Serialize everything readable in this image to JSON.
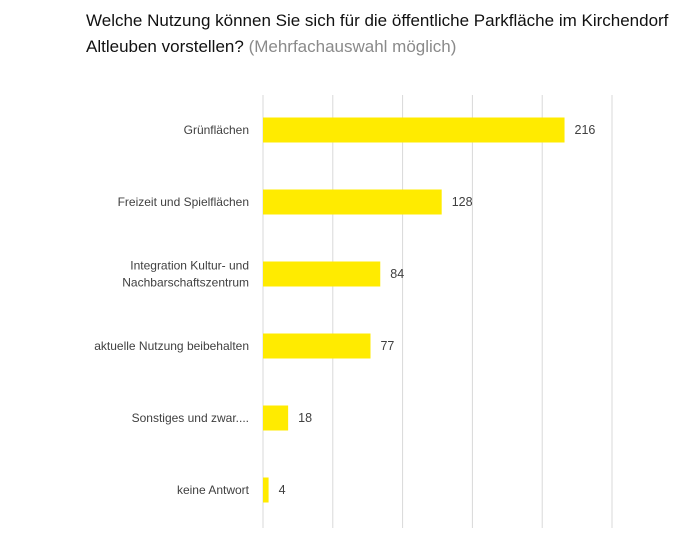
{
  "chart_data": {
    "type": "bar",
    "orientation": "horizontal",
    "title": "Welche Nutzung können Sie sich für die öffentliche Parkfläche im Kirchendorf Altleuben vorstellen?",
    "subtitle": "(Mehrfachauswahl möglich)",
    "categories": [
      [
        "Grünflächen"
      ],
      [
        "Freizeit und Spielflächen"
      ],
      [
        "Integration Kultur- und",
        "Nachbarschaftszentrum"
      ],
      [
        "aktuelle Nutzung beibehalten"
      ],
      [
        "Sonstiges und zwar...."
      ],
      [
        "keine Antwort"
      ]
    ],
    "values": [
      216,
      128,
      84,
      77,
      18,
      4
    ],
    "xlim": [
      0,
      250
    ],
    "grid_step": 50,
    "grid": true,
    "bar_color": "#FFEB00",
    "grid_color": "#d9d9d9"
  }
}
